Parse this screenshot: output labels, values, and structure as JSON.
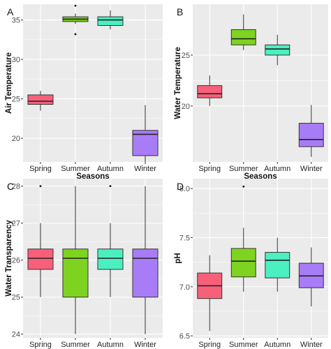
{
  "figure": {
    "categories": [
      "Spring",
      "Summer",
      "Autumn",
      "Winter"
    ],
    "colors": [
      "#f8607a",
      "#7ed321",
      "#4cf0c0",
      "#a97cf7"
    ],
    "panel_bg": "#ebebeb",
    "grid_color": "#ffffff"
  },
  "chart_data": [
    {
      "type": "boxplot",
      "panel_label": "A",
      "ylabel": "Air Temperature",
      "xlabel": "Seasons",
      "ylim": [
        17,
        37
      ],
      "yticks": [
        20,
        25,
        30,
        35
      ],
      "boxes": [
        {
          "category": "Spring",
          "min": 23.5,
          "q1": 24.3,
          "median": 24.7,
          "q3": 25.5,
          "max": 26.0,
          "outliers": []
        },
        {
          "category": "Summer",
          "min": 34.5,
          "q1": 34.8,
          "median": 35.1,
          "q3": 35.4,
          "max": 35.8,
          "outliers": [
            36.8,
            33.2
          ]
        },
        {
          "category": "Autumn",
          "min": 33.8,
          "q1": 34.3,
          "median": 35.0,
          "q3": 35.4,
          "max": 36.2,
          "outliers": []
        },
        {
          "category": "Winter",
          "min": 17.0,
          "q1": 17.8,
          "median": 20.5,
          "q3": 21.0,
          "max": 24.2,
          "outliers": []
        }
      ]
    },
    {
      "type": "boxplot",
      "panel_label": "B",
      "ylabel": "Water Temperature",
      "xlabel": "Seasons",
      "ylim": [
        14.5,
        30
      ],
      "yticks": [
        20,
        25
      ],
      "boxes": [
        {
          "category": "Spring",
          "min": 20.0,
          "q1": 20.8,
          "median": 21.2,
          "q3": 22.0,
          "max": 23.0,
          "outliers": []
        },
        {
          "category": "Summer",
          "min": 25.5,
          "q1": 26.0,
          "median": 26.6,
          "q3": 27.5,
          "max": 29.0,
          "outliers": []
        },
        {
          "category": "Autumn",
          "min": 24.0,
          "q1": 25.0,
          "median": 25.6,
          "q3": 26.0,
          "max": 27.0,
          "outliers": []
        },
        {
          "category": "Winter",
          "min": 15.0,
          "q1": 16.0,
          "median": 16.7,
          "q3": 18.3,
          "max": 20.1,
          "outliers": []
        }
      ]
    },
    {
      "type": "boxplot",
      "panel_label": "C",
      "ylabel": "Water Transparency",
      "xlabel": "",
      "ylim": [
        23.9,
        28.2
      ],
      "yticks": [
        24,
        25,
        26,
        27,
        28
      ],
      "boxes": [
        {
          "category": "Spring",
          "min": 25.0,
          "q1": 25.75,
          "median": 26.05,
          "q3": 26.3,
          "max": 27.0,
          "outliers": [
            28.0
          ]
        },
        {
          "category": "Summer",
          "min": 24.0,
          "q1": 25.0,
          "median": 26.05,
          "q3": 26.3,
          "max": 28.0,
          "outliers": []
        },
        {
          "category": "Autumn",
          "min": 25.0,
          "q1": 25.75,
          "median": 26.05,
          "q3": 26.3,
          "max": 27.0,
          "outliers": [
            28.0
          ]
        },
        {
          "category": "Winter",
          "min": 24.0,
          "q1": 25.0,
          "median": 26.05,
          "q3": 26.3,
          "max": 28.0,
          "outliers": []
        }
      ]
    },
    {
      "type": "boxplot",
      "panel_label": "D",
      "ylabel": "pH",
      "xlabel": "",
      "ylim": [
        6.48,
        8.1
      ],
      "yticks": [
        6.5,
        7.0,
        7.5,
        8.0
      ],
      "ytick_labels": [
        "6.5",
        "7.0",
        "7.5",
        "8.0"
      ],
      "boxes": [
        {
          "category": "Spring",
          "min": 6.55,
          "q1": 6.88,
          "median": 7.01,
          "q3": 7.14,
          "max": 7.32,
          "outliers": []
        },
        {
          "category": "Summer",
          "min": 6.95,
          "q1": 7.1,
          "median": 7.26,
          "q3": 7.39,
          "max": 7.6,
          "outliers": [
            8.02
          ]
        },
        {
          "category": "Autumn",
          "min": 6.95,
          "q1": 7.09,
          "median": 7.27,
          "q3": 7.35,
          "max": 7.5,
          "outliers": []
        },
        {
          "category": "Winter",
          "min": 6.8,
          "q1": 6.99,
          "median": 7.11,
          "q3": 7.24,
          "max": 7.4,
          "outliers": []
        }
      ]
    }
  ]
}
